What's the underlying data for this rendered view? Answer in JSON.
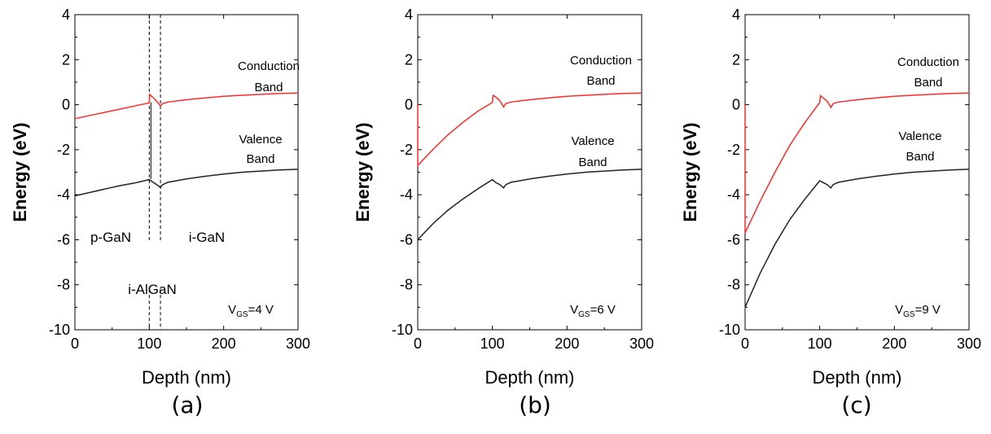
{
  "figure": {
    "panel_labels": [
      "(a)",
      "(b)",
      "(c)"
    ]
  },
  "colors": {
    "conduction": "#ff2a2a",
    "valence": "#222222",
    "axis": "#000000"
  },
  "chart_data": [
    {
      "type": "line",
      "panel_label": "(a)",
      "xlabel": "Depth (nm)",
      "ylabel": "Energy (eV)",
      "xlim": [
        0,
        300
      ],
      "ylim": [
        -10,
        4
      ],
      "xticks": [
        0,
        100,
        200,
        300
      ],
      "yticks": [
        -10,
        -8,
        -6,
        -4,
        -2,
        0,
        2,
        4
      ],
      "grid": false,
      "bias_label": {
        "main": "V",
        "sub": "GS",
        "rest": "=4 V"
      },
      "curve_labels": [
        {
          "lines": [
            "Conduction",
            "Band"
          ],
          "series": 0
        },
        {
          "lines": [
            "Valence",
            "Band"
          ],
          "series": 1
        }
      ],
      "regions": [
        "p-GaN",
        "i-AlGaN",
        "i-GaN"
      ],
      "boundaries": [
        100,
        115
      ],
      "series": [
        {
          "x": [
            0,
            20,
            40,
            60,
            80,
            100,
            100.5,
            104,
            110,
            115,
            118,
            125,
            150,
            175,
            200,
            225,
            250,
            275,
            300
          ],
          "y": [
            -0.62,
            -0.48,
            -0.34,
            -0.2,
            -0.06,
            0.08,
            0.45,
            0.35,
            0.15,
            -0.05,
            0.05,
            0.12,
            0.22,
            0.3,
            0.37,
            0.42,
            0.46,
            0.5,
            0.52
          ]
        },
        {
          "x": [
            0,
            20,
            40,
            60,
            80,
            100,
            104,
            110,
            115,
            118,
            125,
            150,
            175,
            200,
            225,
            250,
            275,
            300
          ],
          "y": [
            -4.05,
            -3.9,
            -3.75,
            -3.6,
            -3.48,
            -3.33,
            -3.42,
            -3.55,
            -3.68,
            -3.55,
            -3.45,
            -3.3,
            -3.18,
            -3.08,
            -3.0,
            -2.95,
            -2.9,
            -2.87
          ]
        }
      ]
    },
    {
      "type": "line",
      "panel_label": "(b)",
      "xlabel": "Depth (nm)",
      "ylabel": "Energy (eV)",
      "xlim": [
        0,
        300
      ],
      "ylim": [
        -10,
        4
      ],
      "xticks": [
        0,
        100,
        200,
        300
      ],
      "yticks": [
        -10,
        -8,
        -6,
        -4,
        -2,
        0,
        2,
        4
      ],
      "grid": false,
      "bias_label": {
        "main": "V",
        "sub": "GS",
        "rest": "=6 V"
      },
      "curve_labels": [
        {
          "lines": [
            "Conduction",
            "Band"
          ],
          "series": 0
        },
        {
          "lines": [
            "Valence",
            "Band"
          ],
          "series": 1
        }
      ],
      "regions": [],
      "boundaries": [],
      "series": [
        {
          "x": [
            0,
            0,
            20,
            40,
            60,
            80,
            100,
            101,
            104,
            110,
            115,
            118,
            125,
            150,
            175,
            200,
            225,
            250,
            275,
            300
          ],
          "y": [
            0.0,
            -2.7,
            -2.0,
            -1.35,
            -0.8,
            -0.3,
            0.1,
            0.42,
            0.35,
            0.18,
            -0.1,
            0.05,
            0.12,
            0.22,
            0.3,
            0.37,
            0.42,
            0.46,
            0.5,
            0.52
          ]
        },
        {
          "x": [
            0,
            20,
            40,
            60,
            80,
            100,
            104,
            110,
            115,
            118,
            125,
            150,
            175,
            200,
            225,
            250,
            275,
            300
          ],
          "y": [
            -6.0,
            -5.3,
            -4.7,
            -4.2,
            -3.75,
            -3.33,
            -3.45,
            -3.55,
            -3.7,
            -3.55,
            -3.45,
            -3.3,
            -3.18,
            -3.08,
            -3.0,
            -2.95,
            -2.9,
            -2.87
          ]
        }
      ]
    },
    {
      "type": "line",
      "panel_label": "(c)",
      "xlabel": "Depth (nm)",
      "ylabel": "Energy (eV)",
      "xlim": [
        0,
        300
      ],
      "ylim": [
        -10,
        4
      ],
      "xticks": [
        0,
        100,
        200,
        300
      ],
      "yticks": [
        -10,
        -8,
        -6,
        -4,
        -2,
        0,
        2,
        4
      ],
      "grid": false,
      "bias_label": {
        "main": "V",
        "sub": "GS",
        "rest": "=9 V"
      },
      "curve_labels": [
        {
          "lines": [
            "Conduction",
            "Band"
          ],
          "series": 0
        },
        {
          "lines": [
            "Valence",
            "Band"
          ],
          "series": 1
        }
      ],
      "regions": [],
      "boundaries": [],
      "series": [
        {
          "x": [
            0,
            0,
            20,
            40,
            60,
            80,
            100,
            101,
            104,
            110,
            115,
            118,
            125,
            150,
            175,
            200,
            225,
            250,
            275,
            300
          ],
          "y": [
            0.0,
            -5.7,
            -4.3,
            -3.0,
            -1.8,
            -0.8,
            0.1,
            0.4,
            0.32,
            0.15,
            -0.12,
            0.05,
            0.12,
            0.22,
            0.3,
            0.37,
            0.42,
            0.46,
            0.5,
            0.52
          ]
        },
        {
          "x": [
            0,
            20,
            40,
            60,
            80,
            100,
            104,
            110,
            115,
            118,
            125,
            150,
            175,
            200,
            225,
            250,
            275,
            300
          ],
          "y": [
            -9.0,
            -7.5,
            -6.2,
            -5.1,
            -4.2,
            -3.38,
            -3.45,
            -3.55,
            -3.7,
            -3.55,
            -3.45,
            -3.3,
            -3.18,
            -3.08,
            -3.0,
            -2.95,
            -2.9,
            -2.87
          ]
        }
      ]
    }
  ]
}
